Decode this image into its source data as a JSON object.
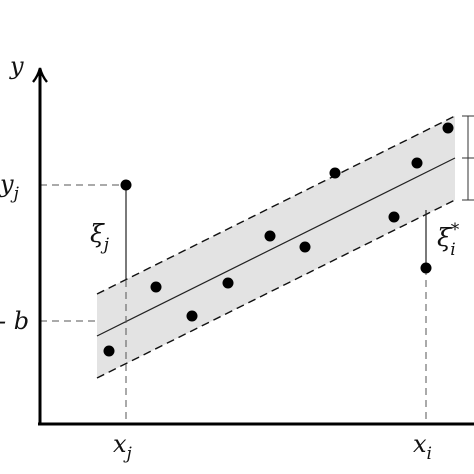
{
  "axis_label_y": "y",
  "tick_y_j": "y",
  "tick_y_j_sub": "j",
  "tick_b": "- b",
  "tick_x_j": "x",
  "tick_x_j_sub": "j",
  "tick_x_i": "x",
  "tick_x_i_sub": "i",
  "slack_j": "ξ",
  "slack_j_sub": "j",
  "slack_i": "ξ",
  "slack_i_sub": "i",
  "slack_i_sup": "*",
  "band_fill": "#e3e3e3"
}
